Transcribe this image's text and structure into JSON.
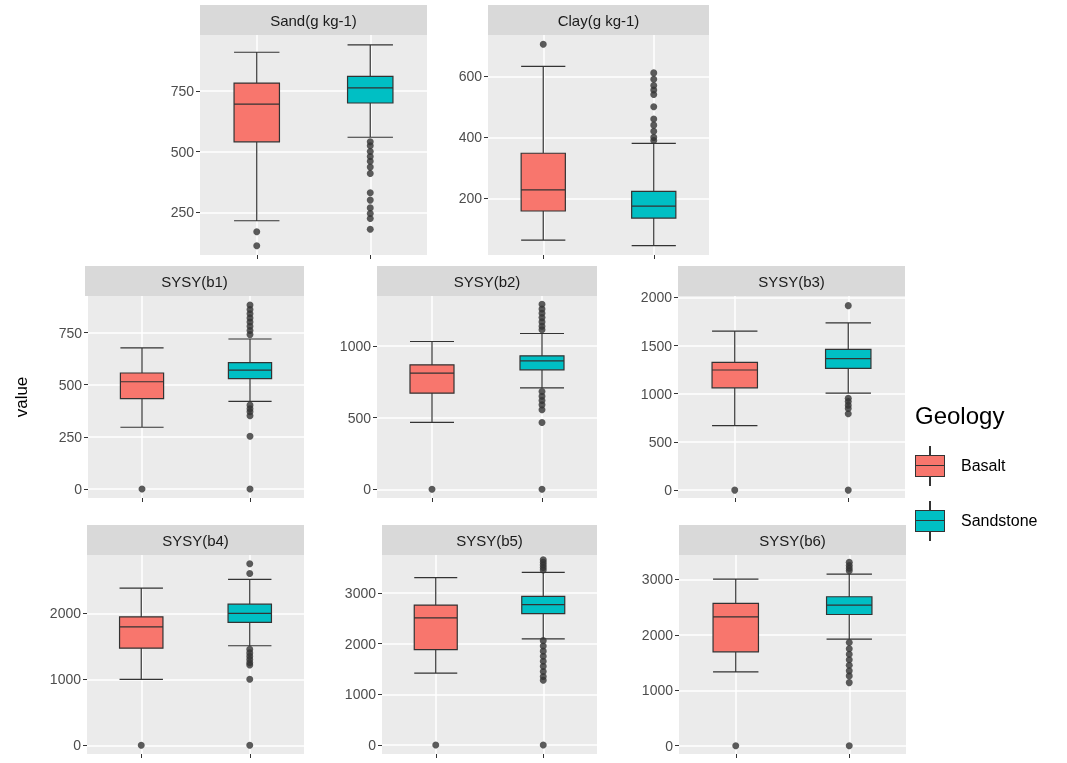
{
  "chart_data": [
    {
      "type": "box",
      "title": "Sand(g kg-1)",
      "categories": [
        null,
        null
      ],
      "colors": [
        "#f8766d",
        "#00bfc4"
      ],
      "ylim": [
        74,
        980
      ],
      "yticks": [
        250,
        500,
        750
      ],
      "grid": true,
      "tick_labels": "y",
      "boxes": [
        {
          "low": 215,
          "q1": 540,
          "median": 695,
          "q3": 782,
          "high": 909,
          "outliers": [
            170,
            112
          ]
        },
        {
          "low": 559,
          "q1": 700,
          "median": 762,
          "q3": 810,
          "high": 939,
          "outliers": [
            540,
            524,
            500,
            480,
            460,
            436,
            410,
            330,
            300,
            268,
            245,
            224,
            180
          ]
        }
      ]
    },
    {
      "type": "box",
      "title": "Clay(g kg-1)",
      "categories": [
        null,
        null
      ],
      "colors": [
        "#f8766d",
        "#00bfc4"
      ],
      "ylim": [
        15,
        735
      ],
      "yticks": [
        200,
        400,
        600
      ],
      "grid": true,
      "tick_labels": "y",
      "boxes": [
        {
          "low": 64,
          "q1": 159,
          "median": 228,
          "q3": 348,
          "high": 632,
          "outliers": [
            705
          ]
        },
        {
          "low": 46,
          "q1": 136,
          "median": 175,
          "q3": 223,
          "high": 380,
          "outliers": [
            611,
            590,
            570,
            555,
            540,
            500,
            460,
            440,
            420,
            400,
            390
          ]
        }
      ]
    },
    {
      "type": "box",
      "title": "SYSY(b1)",
      "ylabel": "value",
      "categories": [
        null,
        null
      ],
      "colors": [
        "#f8766d",
        "#00bfc4"
      ],
      "ylim": [
        -43,
        925
      ],
      "yticks": [
        0,
        250,
        500,
        750
      ],
      "grid": true,
      "tick_labels": "y",
      "boxes": [
        {
          "low": 296,
          "q1": 433,
          "median": 514,
          "q3": 556,
          "high": 676,
          "outliers": [
            0
          ]
        },
        {
          "low": 420,
          "q1": 529,
          "median": 570,
          "q3": 606,
          "high": 719,
          "outliers": [
            882,
            860,
            840,
            820,
            800,
            780,
            760,
            740,
            402,
            385,
            370,
            351,
            253,
            0
          ]
        }
      ]
    },
    {
      "type": "box",
      "title": "SYSY(b2)",
      "categories": [
        null,
        null
      ],
      "colors": [
        "#f8766d",
        "#00bfc4"
      ],
      "ylim": [
        -61,
        1351
      ],
      "yticks": [
        0,
        500,
        1000
      ],
      "grid": true,
      "tick_labels": "y",
      "boxes": [
        {
          "low": 467,
          "q1": 672,
          "median": 812,
          "q3": 870,
          "high": 1033,
          "outliers": [
            0
          ]
        },
        {
          "low": 709,
          "q1": 835,
          "median": 898,
          "q3": 933,
          "high": 1089,
          "outliers": [
            1293,
            1260,
            1230,
            1200,
            1170,
            1140,
            1115,
            684,
            650,
            620,
            590,
            556,
            467,
            0
          ]
        }
      ]
    },
    {
      "type": "box",
      "title": "SYSY(b3)",
      "legend_title": "Geology",
      "annotations": [
        "Basalt",
        "Sandstone"
      ],
      "categories": [
        null,
        null
      ],
      "colors": [
        "#f8766d",
        "#00bfc4"
      ],
      "ylim": [
        -82,
        2014
      ],
      "yticks": [
        0,
        500,
        1000,
        1500,
        2000
      ],
      "grid": true,
      "tick_labels": "y",
      "boxes": [
        {
          "low": 668,
          "q1": 1061,
          "median": 1246,
          "q3": 1325,
          "high": 1650,
          "outliers": [
            0
          ]
        },
        {
          "low": 1007,
          "q1": 1264,
          "median": 1364,
          "q3": 1461,
          "high": 1736,
          "outliers": [
            1914,
            953,
            920,
            880,
            846,
            793,
            0
          ]
        }
      ]
    },
    {
      "type": "box",
      "title": "SYSY(b4)",
      "categories": [
        null,
        null
      ],
      "colors": [
        "#f8766d",
        "#00bfc4"
      ],
      "ylim": [
        -132,
        2883
      ],
      "yticks": [
        0,
        1000,
        2000
      ],
      "grid": true,
      "tick_labels": "y",
      "boxes": [
        {
          "low": 1000,
          "q1": 1471,
          "median": 1794,
          "q3": 1947,
          "high": 2381,
          "outliers": [
            0
          ]
        },
        {
          "low": 1508,
          "q1": 1862,
          "median": 2000,
          "q3": 2138,
          "high": 2513,
          "outliers": [
            2751,
            2603,
            1455,
            1400,
            1350,
            1300,
            1250,
            1217,
            1000,
            0
          ]
        }
      ]
    },
    {
      "type": "box",
      "title": "SYSY(b5)",
      "categories": [
        null,
        null
      ],
      "colors": [
        "#f8766d",
        "#00bfc4"
      ],
      "ylim": [
        -177,
        3745
      ],
      "yticks": [
        0,
        1000,
        2000,
        3000
      ],
      "grid": true,
      "tick_labels": "y",
      "boxes": [
        {
          "low": 1418,
          "q1": 1880,
          "median": 2504,
          "q3": 2759,
          "high": 3298,
          "outliers": [
            0
          ]
        },
        {
          "low": 2092,
          "q1": 2589,
          "median": 2766,
          "q3": 2929,
          "high": 3404,
          "outliers": [
            3652,
            3600,
            3550,
            3500,
            3450,
            2057,
            1950,
            1850,
            1750,
            1650,
            1550,
            1450,
            1350,
            1277,
            0
          ]
        }
      ]
    },
    {
      "type": "box",
      "title": "SYSY(b6)",
      "categories": [
        null,
        null
      ],
      "colors": [
        "#f8766d",
        "#00bfc4"
      ],
      "ylim": [
        -150,
        3440
      ],
      "yticks": [
        0,
        1000,
        2000,
        3000
      ],
      "grid": true,
      "tick_labels": "y",
      "boxes": [
        {
          "low": 1331,
          "q1": 1693,
          "median": 2325,
          "q3": 2566,
          "high": 3006,
          "outliers": [
            0
          ]
        },
        {
          "low": 1922,
          "q1": 2367,
          "median": 2536,
          "q3": 2687,
          "high": 3096,
          "outliers": [
            3307,
            3250,
            3200,
            3157,
            1861,
            1750,
            1650,
            1550,
            1450,
            1350,
            1259,
            1138,
            0
          ]
        }
      ]
    }
  ]
}
